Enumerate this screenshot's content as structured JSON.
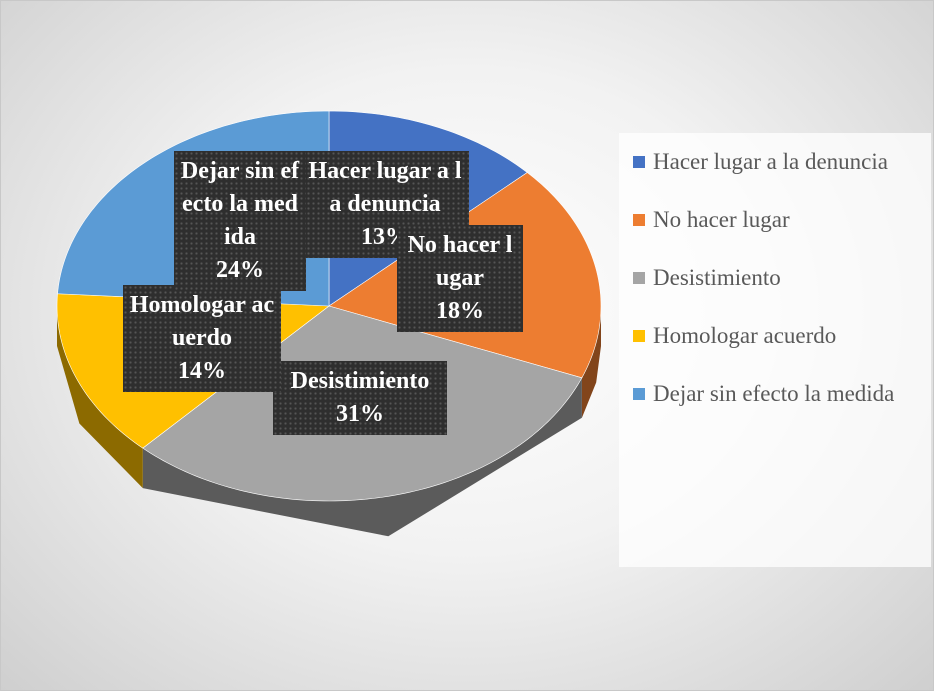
{
  "chart_data": {
    "type": "pie",
    "categories": [
      "Hacer lugar a la denuncia",
      "No hacer lugar",
      "Desistimiento",
      "Homologar acuerdo",
      "Dejar sin efecto la medida"
    ],
    "values": [
      13,
      18,
      31,
      14,
      24
    ],
    "value_labels": [
      "13%",
      "18%",
      "31%",
      "14%",
      "24%"
    ],
    "colors": [
      "#4472c4",
      "#ed7d31",
      "#a5a5a5",
      "#ffc000",
      "#5b9bd5"
    ],
    "legend": "right"
  }
}
